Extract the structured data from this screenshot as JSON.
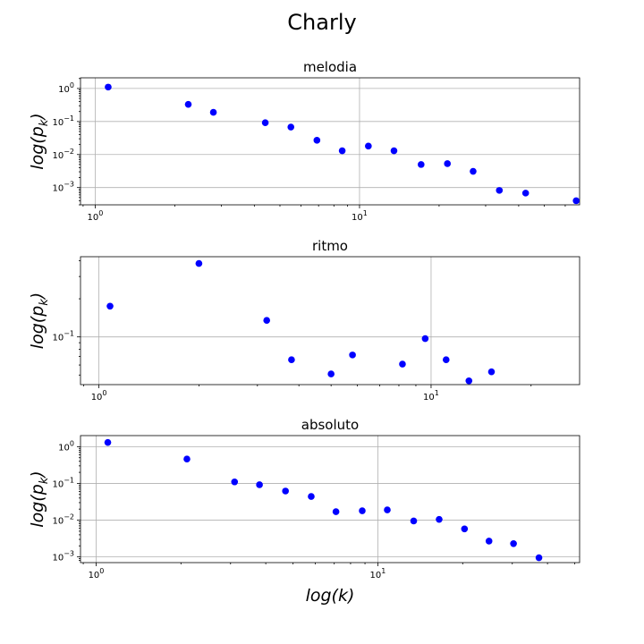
{
  "figure": {
    "title": "Charly",
    "xlabel": "log(k)",
    "ylabel": "log(p_k)",
    "point_color": "#0000ff"
  },
  "chart_data": [
    {
      "type": "scatter",
      "title": "melodia",
      "xscale": "log",
      "yscale": "log",
      "grid": true,
      "xlim": [
        0.88,
        68
      ],
      "ylim": [
        0.0003,
        2.1
      ],
      "xticks": [
        {
          "value": 1,
          "label": "10^0"
        },
        {
          "value": 10,
          "label": "10^1"
        }
      ],
      "yticks": [
        {
          "value": 1,
          "label": "10^0"
        },
        {
          "value": 0.1,
          "label": "10^-1"
        },
        {
          "value": 0.01,
          "label": "10^-2"
        },
        {
          "value": 0.001,
          "label": "10^-3"
        }
      ],
      "x": [
        1.12,
        2.25,
        2.8,
        4.4,
        5.5,
        6.9,
        8.6,
        10.8,
        13.5,
        17.1,
        21.5,
        26.9,
        33.8,
        42.5,
        66
      ],
      "y": [
        1.1,
        0.33,
        0.19,
        0.092,
        0.068,
        0.027,
        0.013,
        0.018,
        0.013,
        0.005,
        0.0053,
        0.0031,
        0.00082,
        0.00068,
        0.0004
      ]
    },
    {
      "type": "scatter",
      "title": "ritmo",
      "xscale": "log",
      "yscale": "log",
      "grid": true,
      "xlim": [
        0.88,
        28
      ],
      "ylim": [
        0.042,
        0.43
      ],
      "xticks": [
        {
          "value": 1,
          "label": "10^0"
        },
        {
          "value": 10,
          "label": "10^1"
        }
      ],
      "yticks": [
        {
          "value": 0.1,
          "label": "10^-1"
        }
      ],
      "x": [
        1.08,
        2.0,
        3.2,
        3.8,
        5.0,
        5.8,
        8.2,
        9.6,
        11.1,
        13.0,
        15.2
      ],
      "y": [
        0.175,
        0.38,
        0.135,
        0.066,
        0.051,
        0.072,
        0.061,
        0.097,
        0.066,
        0.045,
        0.053
      ]
    },
    {
      "type": "scatter",
      "title": "absoluto",
      "xscale": "log",
      "yscale": "log",
      "grid": true,
      "xlim": [
        0.88,
        52
      ],
      "ylim": [
        0.0007,
        2.0
      ],
      "xticks": [
        {
          "value": 1,
          "label": "10^0"
        },
        {
          "value": 10,
          "label": "10^1"
        }
      ],
      "yticks": [
        {
          "value": 1,
          "label": "10^0"
        },
        {
          "value": 0.1,
          "label": "10^-1"
        },
        {
          "value": 0.01,
          "label": "10^-2"
        },
        {
          "value": 0.001,
          "label": "10^-3"
        }
      ],
      "x": [
        1.1,
        2.1,
        3.1,
        3.8,
        4.7,
        5.8,
        7.1,
        8.8,
        10.8,
        13.4,
        16.5,
        20.3,
        24.8,
        30.3,
        37.3
      ],
      "y": [
        1.3,
        0.46,
        0.11,
        0.092,
        0.062,
        0.044,
        0.017,
        0.018,
        0.019,
        0.0095,
        0.0105,
        0.0058,
        0.0027,
        0.0023,
        0.00095
      ]
    }
  ]
}
